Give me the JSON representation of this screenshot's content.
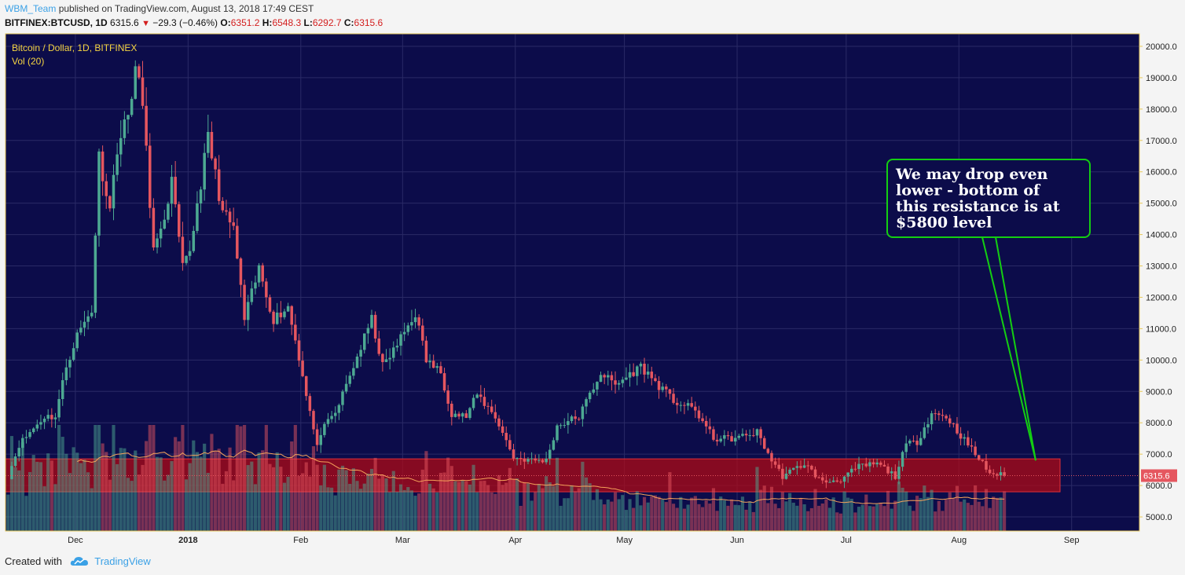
{
  "header": {
    "user": "WBM_Team",
    "published": "published on TradingView.com, August 13, 2018 17:49 CEST",
    "symbol": "BITFINEX:BTCUSD, 1D",
    "last": "6315.6",
    "change": "−29.3 (−0.46%)",
    "o_label": "O:",
    "o_value": "6351.2",
    "h_label": "H:",
    "h_value": "6548.3",
    "l_label": "L:",
    "l_value": "6292.7",
    "c_label": "C:",
    "c_value": "6315.6"
  },
  "legend": {
    "title": "Bitcoin / Dollar, 1D, BITFINEX",
    "vol": "Vol (20)"
  },
  "annotation": {
    "lines": [
      "We may drop even",
      "lower - bottom of",
      "this resistance is at",
      "$5800 level"
    ]
  },
  "price_tag": "6315.6",
  "footer": {
    "created": "Created with",
    "brand": "TradingView"
  },
  "colors": {
    "background": "#0c0c4a",
    "up": "#4da992",
    "down": "#e5565f",
    "zone": "#b50a14",
    "callout": "#14ce12",
    "axis": "#e6c85a",
    "ma": "#f5a25a"
  },
  "chart_data": {
    "type": "candlestick",
    "title": "Bitcoin / Dollar, 1D, BITFINEX",
    "x_ticks": [
      "Dec",
      "2018",
      "Feb",
      "Mar",
      "Apr",
      "May",
      "Jun",
      "Jul",
      "Aug",
      "Sep"
    ],
    "y_ticks": [
      "5000.0",
      "6000.0",
      "7000.0",
      "8000.0",
      "9000.0",
      "10000.0",
      "11000.0",
      "12000.0",
      "13000.0",
      "14000.0",
      "15000.0",
      "16000.0",
      "17000.0",
      "18000.0",
      "19000.0",
      "20000.0"
    ],
    "ylim": [
      4550,
      20400
    ],
    "last_close": 6315.6,
    "resistance_zone": {
      "from": 5800,
      "to": 6850
    },
    "volume_ma_period": 20,
    "close_anchors": [
      [
        "2017-11-12",
        6300
      ],
      [
        "2017-11-15",
        7300
      ],
      [
        "2017-11-18",
        7700
      ],
      [
        "2017-11-22",
        8200
      ],
      [
        "2017-11-25",
        8200
      ],
      [
        "2017-11-28",
        9800
      ],
      [
        "2017-12-01",
        10800
      ],
      [
        "2017-12-05",
        11600
      ],
      [
        "2017-12-07",
        16500
      ],
      [
        "2017-12-10",
        14800
      ],
      [
        "2017-12-12",
        16800
      ],
      [
        "2017-12-15",
        17800
      ],
      [
        "2017-12-17",
        19300
      ],
      [
        "2017-12-19",
        18200
      ],
      [
        "2017-12-22",
        13500
      ],
      [
        "2017-12-24",
        14000
      ],
      [
        "2017-12-27",
        15700
      ],
      [
        "2017-12-30",
        12900
      ],
      [
        "2018-01-01",
        13500
      ],
      [
        "2018-01-06",
        17100
      ],
      [
        "2018-01-10",
        14700
      ],
      [
        "2018-01-13",
        14200
      ],
      [
        "2018-01-16",
        11300
      ],
      [
        "2018-01-20",
        12900
      ],
      [
        "2018-01-24",
        11300
      ],
      [
        "2018-01-28",
        11700
      ],
      [
        "2018-01-31",
        10100
      ],
      [
        "2018-02-05",
        7200
      ],
      [
        "2018-02-06",
        7700
      ],
      [
        "2018-02-10",
        8300
      ],
      [
        "2018-02-16",
        10100
      ],
      [
        "2018-02-20",
        11300
      ],
      [
        "2018-02-23",
        9800
      ],
      [
        "2018-02-26",
        10300
      ],
      [
        "2018-03-04",
        11500
      ],
      [
        "2018-03-07",
        10000
      ],
      [
        "2018-03-11",
        9600
      ],
      [
        "2018-03-14",
        8300
      ],
      [
        "2018-03-18",
        8200
      ],
      [
        "2018-03-21",
        8900
      ],
      [
        "2018-03-26",
        8200
      ],
      [
        "2018-03-31",
        6900
      ],
      [
        "2018-04-05",
        6800
      ],
      [
        "2018-04-09",
        6800
      ],
      [
        "2018-04-12",
        7900
      ],
      [
        "2018-04-18",
        8200
      ],
      [
        "2018-04-24",
        9600
      ],
      [
        "2018-04-28",
        9200
      ],
      [
        "2018-05-05",
        9800
      ],
      [
        "2018-05-09",
        9300
      ],
      [
        "2018-05-14",
        8700
      ],
      [
        "2018-05-20",
        8400
      ],
      [
        "2018-05-25",
        7500
      ],
      [
        "2018-05-31",
        7500
      ],
      [
        "2018-06-06",
        7700
      ],
      [
        "2018-06-10",
        6800
      ],
      [
        "2018-06-13",
        6300
      ],
      [
        "2018-06-19",
        6700
      ],
      [
        "2018-06-24",
        6100
      ],
      [
        "2018-06-29",
        6200
      ],
      [
        "2018-07-04",
        6600
      ],
      [
        "2018-07-09",
        6700
      ],
      [
        "2018-07-14",
        6300
      ],
      [
        "2018-07-17",
        7300
      ],
      [
        "2018-07-20",
        7400
      ],
      [
        "2018-07-24",
        8300
      ],
      [
        "2018-07-28",
        8200
      ],
      [
        "2018-08-01",
        7600
      ],
      [
        "2018-08-05",
        7000
      ],
      [
        "2018-08-09",
        6400
      ],
      [
        "2018-08-13",
        6315.6
      ]
    ]
  }
}
